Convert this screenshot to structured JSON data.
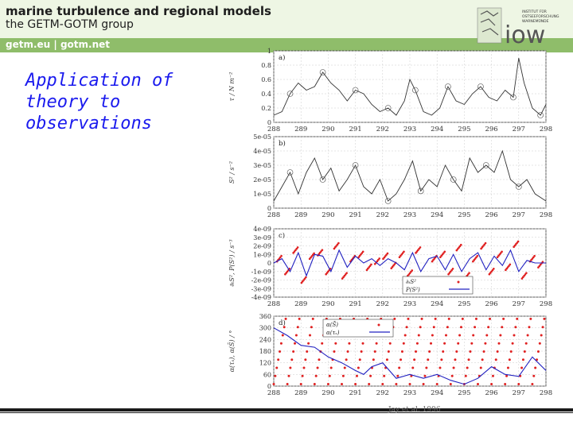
{
  "header": {
    "title": "marine turbulence and regional models",
    "subtitle": "the GETM-GOTM group",
    "links": "getm.eu  |  gotm.net",
    "logo_text": "iow",
    "logo_small": [
      "INSTITUT FÜR",
      "OSTSEEFORSCHUNG",
      "WARNEMÜNDE"
    ]
  },
  "slide": {
    "title": "Application of theory to observations"
  },
  "caption": "Jay et al. 1996",
  "colors": {
    "title_blue": "#1a1aee",
    "band_green": "#8fbd6a",
    "series_red": "#e02020",
    "series_blue": "#2020c0"
  },
  "chart_data": [
    {
      "type": "line",
      "panel_label": "a)",
      "ylabel": "τ / N m⁻²",
      "xlabel": "",
      "x_ticks": [
        "288",
        "289",
        "290",
        "291",
        "292",
        "293",
        "294",
        "295",
        "296",
        "297",
        "298"
      ],
      "y_ticks": [
        "0",
        "0.2",
        "0.4",
        "0.6",
        "0.8",
        "1"
      ],
      "xlim": [
        288,
        298
      ],
      "ylim": [
        0,
        1
      ],
      "series": [
        {
          "name": "stress",
          "color": "#333333",
          "x": [
            288,
            288.3,
            288.6,
            288.9,
            289.2,
            289.5,
            289.8,
            290.1,
            290.4,
            290.7,
            291,
            291.3,
            291.6,
            291.9,
            292.2,
            292.5,
            292.8,
            293,
            293.2,
            293.5,
            293.8,
            294.1,
            294.4,
            294.7,
            295,
            295.3,
            295.6,
            295.9,
            296.2,
            296.5,
            296.8,
            297,
            297.2,
            297.5,
            297.8,
            298
          ],
          "values": [
            0.1,
            0.15,
            0.4,
            0.55,
            0.45,
            0.5,
            0.7,
            0.55,
            0.45,
            0.3,
            0.45,
            0.4,
            0.25,
            0.15,
            0.2,
            0.1,
            0.3,
            0.6,
            0.45,
            0.15,
            0.1,
            0.2,
            0.5,
            0.3,
            0.25,
            0.4,
            0.5,
            0.35,
            0.3,
            0.45,
            0.35,
            0.9,
            0.55,
            0.2,
            0.1,
            0.25
          ]
        }
      ]
    },
    {
      "type": "line",
      "panel_label": "b)",
      "ylabel": "S² / s⁻²",
      "xlabel": "",
      "x_ticks": [
        "288",
        "289",
        "290",
        "291",
        "292",
        "293",
        "294",
        "295",
        "296",
        "297",
        "298"
      ],
      "y_ticks": [
        "0",
        "1e-05",
        "2e-05",
        "3e-05",
        "4e-05",
        "5e-05"
      ],
      "xlim": [
        288,
        298
      ],
      "ylim": [
        0,
        5e-05
      ],
      "series": [
        {
          "name": "S2",
          "color": "#333333",
          "x": [
            288,
            288.3,
            288.6,
            288.9,
            289.2,
            289.5,
            289.8,
            290.1,
            290.4,
            290.7,
            291,
            291.3,
            291.6,
            291.9,
            292.2,
            292.5,
            292.8,
            293.1,
            293.4,
            293.7,
            294,
            294.3,
            294.6,
            294.9,
            295.2,
            295.5,
            295.8,
            296.1,
            296.4,
            296.7,
            297,
            297.3,
            297.6,
            298
          ],
          "values": [
            5e-06,
            1.5e-05,
            2.5e-05,
            1e-05,
            2.5e-05,
            3.5e-05,
            2e-05,
            2.8e-05,
            1.2e-05,
            2e-05,
            3e-05,
            1.5e-05,
            1e-05,
            2e-05,
            5e-06,
            1e-05,
            2e-05,
            3.3e-05,
            1.2e-05,
            2e-05,
            1.5e-05,
            3e-05,
            2e-05,
            1.2e-05,
            3.5e-05,
            2.5e-05,
            3e-05,
            2.5e-05,
            4e-05,
            2e-05,
            1.5e-05,
            2e-05,
            1e-05,
            5e-06
          ]
        }
      ]
    },
    {
      "type": "scatter",
      "panel_label": "c)",
      "ylabel": "∂ₜS², P(S²) / s⁻³",
      "xlabel": "",
      "x_ticks": [
        "288",
        "289",
        "290",
        "291",
        "292",
        "293",
        "294",
        "295",
        "296",
        "297",
        "298"
      ],
      "y_ticks": [
        "-4e-09",
        "-3e-09",
        "-2e-09",
        "-1e-09",
        "0",
        "1e-09",
        "2e-09",
        "3e-09",
        "4e-09"
      ],
      "xlim": [
        288,
        298
      ],
      "ylim": [
        -4e-09,
        4e-09
      ],
      "legend": [
        "∂ₜS²",
        "P(S²)"
      ],
      "series": [
        {
          "name": "∂ₜS²",
          "color": "#e02020",
          "x": [
            288.2,
            288.5,
            288.8,
            289.1,
            289.4,
            289.7,
            290,
            290.3,
            290.6,
            290.9,
            291.2,
            291.5,
            291.8,
            292.1,
            292.4,
            292.7,
            293,
            293.3,
            293.6,
            293.9,
            294.2,
            294.5,
            294.8,
            295.1,
            295.4,
            295.7,
            296,
            296.3,
            296.6,
            296.9,
            297.2,
            297.5,
            297.8
          ],
          "values": [
            5e-10,
            -1e-09,
            1.5e-09,
            -2e-09,
            8e-10,
            1.2e-09,
            -1e-09,
            2e-09,
            -1.5e-09,
            5e-10,
            1e-09,
            -5e-10,
            2e-10,
            8e-10,
            -3e-10,
            1e-09,
            -1.2e-09,
            1.5e-09,
            -2e-09,
            5e-10,
            1e-09,
            -1e-09,
            1.8e-09,
            -1.5e-09,
            5e-10,
            2e-09,
            -1e-09,
            1e-09,
            -5e-10,
            2.2e-09,
            -1.5e-09,
            5e-10,
            -2e-10
          ]
        },
        {
          "name": "P(S²)",
          "color": "#2020c0",
          "x": [
            288,
            288.3,
            288.6,
            288.9,
            289.2,
            289.5,
            289.8,
            290.1,
            290.4,
            290.7,
            291,
            291.3,
            291.6,
            291.9,
            292.2,
            292.5,
            292.8,
            293.1,
            293.4,
            293.7,
            294,
            294.3,
            294.6,
            294.9,
            295.2,
            295.5,
            295.8,
            296.1,
            296.4,
            296.7,
            297,
            297.3,
            297.6,
            298
          ],
          "values": [
            0,
            5e-10,
            -1e-09,
            1.2e-09,
            -1.5e-09,
            1e-09,
            8e-10,
            -1e-09,
            1.5e-09,
            -5e-10,
            8e-10,
            0,
            5e-10,
            -3e-10,
            5e-10,
            0,
            -8e-10,
            1.2e-09,
            -1e-09,
            5e-10,
            8e-10,
            -8e-10,
            1e-09,
            -1e-09,
            5e-10,
            1.2e-09,
            -8e-10,
            8e-10,
            -3e-10,
            1.5e-09,
            -1e-09,
            3e-10,
            0,
            0
          ]
        }
      ]
    },
    {
      "type": "scatter",
      "panel_label": "d)",
      "ylabel": "α(τₛ), α(S̄) / °",
      "xlabel": "",
      "x_ticks": [
        "288",
        "289",
        "290",
        "291",
        "292",
        "293",
        "294",
        "295",
        "296",
        "297",
        "298"
      ],
      "y_ticks": [
        "0",
        "60",
        "120",
        "180",
        "240",
        "300",
        "360"
      ],
      "xlim": [
        288,
        298
      ],
      "ylim": [
        0,
        360
      ],
      "legend": [
        "α(S̄)",
        "α(τₛ)"
      ],
      "series": [
        {
          "name": "α(S̄)",
          "color": "#e02020",
          "pattern": "sawtooth_half_day"
        },
        {
          "name": "α(τₛ)",
          "color": "#2020c0",
          "x": [
            288,
            288.5,
            289,
            289.5,
            290,
            290.5,
            291,
            291.3,
            291.6,
            292,
            292.5,
            293,
            293.5,
            294,
            294.5,
            295,
            295.5,
            296,
            296.5,
            297,
            297.5,
            298
          ],
          "values": [
            300,
            260,
            210,
            200,
            150,
            120,
            80,
            60,
            100,
            120,
            40,
            60,
            40,
            60,
            30,
            10,
            40,
            100,
            60,
            50,
            150,
            80
          ]
        }
      ]
    }
  ]
}
